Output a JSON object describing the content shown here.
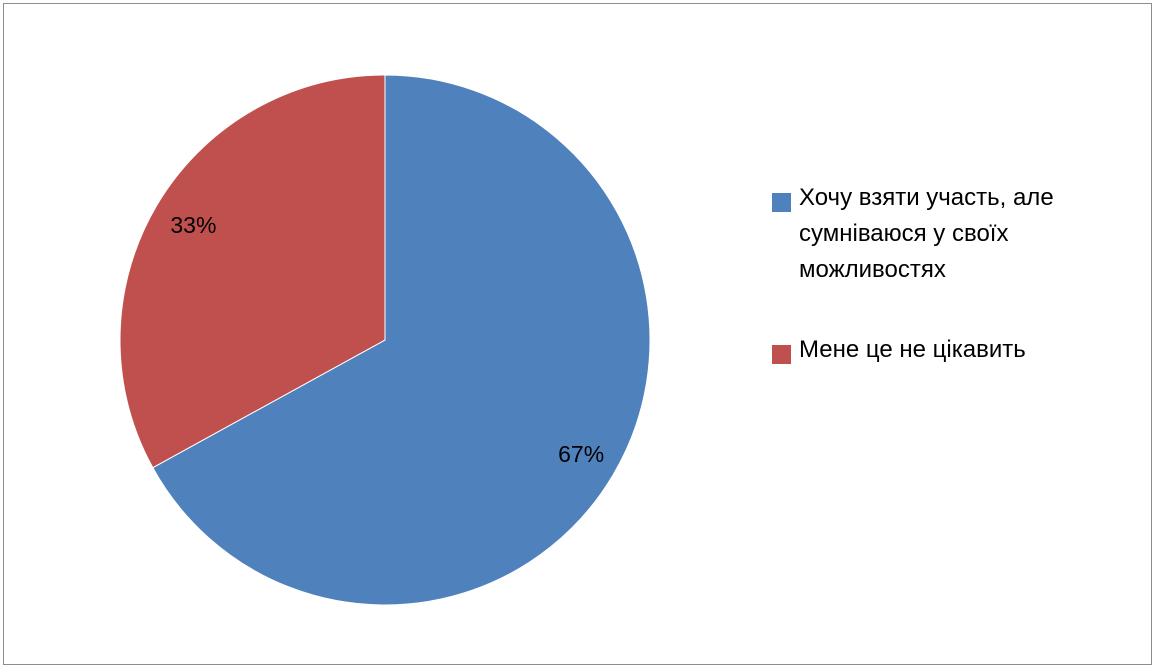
{
  "chart_data": {
    "type": "pie",
    "title": "",
    "categories": [
      "Хочу взяти участь, але сумніваюся у своїх можливостях",
      "Мене це не цікавить"
    ],
    "values": [
      67,
      33
    ],
    "data_labels": [
      "67%",
      "33%"
    ],
    "colors": [
      "#4f81bd",
      "#c0504d"
    ],
    "legend": "right",
    "start_angle_deg": 0,
    "direction": "clockwise"
  }
}
